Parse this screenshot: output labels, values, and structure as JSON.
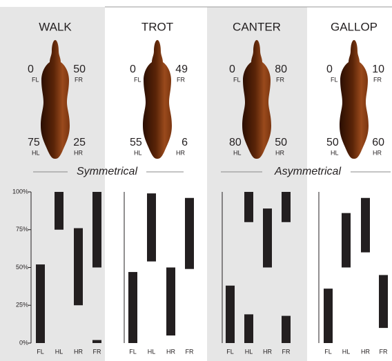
{
  "groups": [
    "Symmetrical",
    "Asymmetrical"
  ],
  "chart_data": [
    {
      "type": "range-bar",
      "title": "WALK",
      "legs": [
        {
          "label": "FL",
          "value": 0
        },
        {
          "label": "FR",
          "value": 50
        },
        {
          "label": "HL",
          "value": 75
        },
        {
          "label": "HR",
          "value": 25
        }
      ],
      "categories": [
        "FL",
        "HL",
        "HR",
        "FR"
      ],
      "ranges": [
        [
          [
            0,
            52
          ]
        ],
        [
          [
            75,
            100
          ]
        ],
        [
          [
            25,
            76
          ]
        ],
        [
          [
            50,
            100
          ],
          [
            0,
            2
          ]
        ]
      ],
      "color": "#231f20",
      "ylim": [
        0,
        100
      ],
      "yticks": [
        {
          "value": 0,
          "label": "0%"
        },
        {
          "value": 25,
          "label": "25%"
        },
        {
          "value": 50,
          "label": "50%"
        },
        {
          "value": 75,
          "label": "75%"
        },
        {
          "value": 100,
          "label": "100%"
        }
      ]
    },
    {
      "type": "range-bar",
      "title": "TROT",
      "legs": [
        {
          "label": "FL",
          "value": 0
        },
        {
          "label": "FR",
          "value": 49
        },
        {
          "label": "HL",
          "value": 55
        },
        {
          "label": "HR",
          "value": 6
        }
      ],
      "categories": [
        "FL",
        "HL",
        "HR",
        "FR"
      ],
      "ranges": [
        [
          [
            0,
            47
          ]
        ],
        [
          [
            54,
            99
          ]
        ],
        [
          [
            5,
            50
          ]
        ],
        [
          [
            49,
            96
          ]
        ]
      ],
      "color": "#231f20",
      "ylim": [
        0,
        100
      ]
    },
    {
      "type": "range-bar",
      "title": "CANTER",
      "legs": [
        {
          "label": "FL",
          "value": 0
        },
        {
          "label": "FR",
          "value": 80
        },
        {
          "label": "HL",
          "value": 80
        },
        {
          "label": "HR",
          "value": 50
        }
      ],
      "categories": [
        "FL",
        "HL",
        "HR",
        "FR"
      ],
      "ranges": [
        [
          [
            0,
            38
          ]
        ],
        [
          [
            80,
            100
          ],
          [
            0,
            19
          ]
        ],
        [
          [
            50,
            89
          ]
        ],
        [
          [
            80,
            100
          ],
          [
            0,
            18
          ]
        ]
      ],
      "color": "#231f20",
      "ylim": [
        0,
        100
      ]
    },
    {
      "type": "range-bar",
      "title": "GALLOP",
      "legs": [
        {
          "label": "FL",
          "value": 0
        },
        {
          "label": "FR",
          "value": 10
        },
        {
          "label": "HL",
          "value": 50
        },
        {
          "label": "HR",
          "value": 60
        }
      ],
      "categories": [
        "FL",
        "HL",
        "HR",
        "FR"
      ],
      "ranges": [
        [
          [
            0,
            36
          ]
        ],
        [
          [
            50,
            86
          ]
        ],
        [
          [
            60,
            96
          ]
        ],
        [
          [
            10,
            45
          ]
        ]
      ],
      "color": "#231f20",
      "ylim": [
        0,
        100
      ]
    }
  ]
}
